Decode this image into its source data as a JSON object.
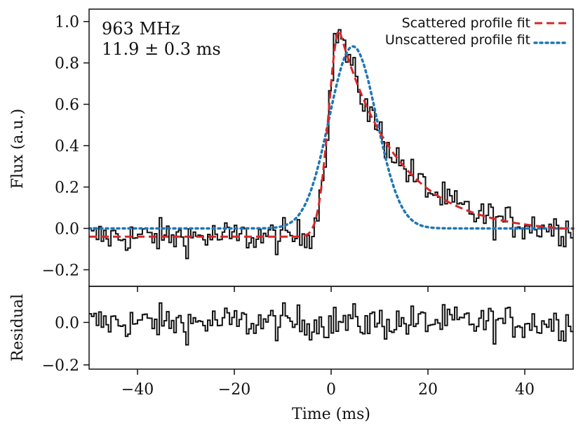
{
  "chart_data": {
    "type": "line",
    "xlabel": "Time (ms)",
    "xlim": [
      -50,
      50
    ],
    "xticks": [
      -40,
      -20,
      0,
      20,
      40
    ],
    "xtick_labels": [
      "−40",
      "−20",
      "0",
      "20",
      "40"
    ],
    "annotation": {
      "frequency": "963 MHz",
      "scattering_time": "11.9 ± 0.3 ms"
    },
    "legend": {
      "placement": "top-right",
      "entries": [
        "Scattered profile fit",
        "Unscattered profile fit"
      ]
    },
    "panels": {
      "top": {
        "ylabel": "Flux (a.u.)",
        "ylim": [
          -0.28,
          1.06
        ],
        "yticks": [
          -0.2,
          0.0,
          0.2,
          0.4,
          0.6,
          0.8,
          1.0
        ],
        "ytick_labels": [
          "−0.2",
          "0.0",
          "0.2",
          "0.4",
          "0.6",
          "0.8",
          "1.0"
        ],
        "series": [
          {
            "name": "Data",
            "style": "steps",
            "color": "#111111",
            "model": "scattered_plus_noise",
            "bin_width_ms": 0.5,
            "noise_rms": 0.04
          },
          {
            "name": "Scattered profile fit",
            "style": "dashed",
            "color": "#d62728",
            "params": {
              "peak_time": 1.7,
              "peak": 0.96,
              "baseline": -0.04,
              "end_value": -0.02,
              "rise_sigma": 2.2,
              "tau": 11.9
            }
          },
          {
            "name": "Unscattered profile fit",
            "style": "dotted",
            "color": "#1f77b4",
            "params": {
              "center": 4.5,
              "amplitude": 0.88,
              "baseline": 0.0,
              "sigma": 4.9
            }
          }
        ]
      },
      "bottom": {
        "ylabel": "Residual",
        "ylim": [
          -0.22,
          0.17
        ],
        "yticks": [
          -0.2,
          0.0
        ],
        "ytick_labels": [
          "−0.2",
          "0.0"
        ],
        "series": [
          {
            "name": "Residual",
            "style": "steps",
            "color": "#111111",
            "noise_rms": 0.04
          }
        ]
      }
    }
  }
}
